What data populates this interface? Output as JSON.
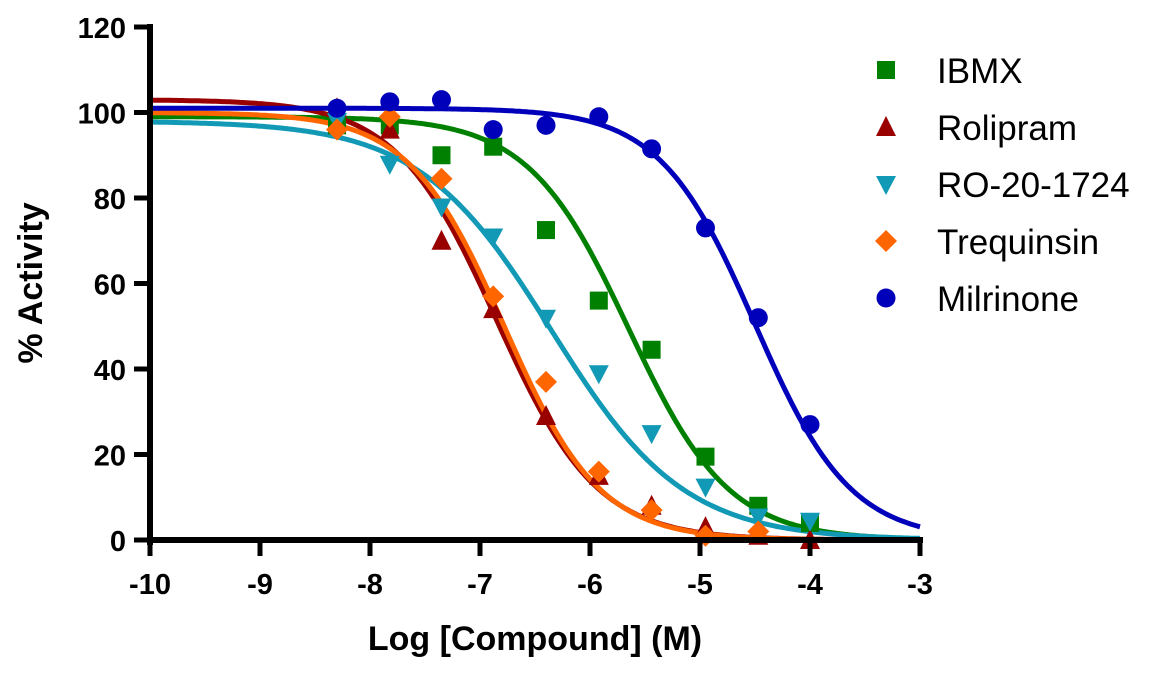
{
  "chart_data": {
    "type": "scatter",
    "title": "",
    "xlabel": "Log [Compound] (M)",
    "ylabel": "% Activity",
    "xlim": [
      -10,
      -3
    ],
    "ylim": [
      0,
      120
    ],
    "xticks": [
      "-10",
      "-9",
      "-8",
      "-7",
      "-6",
      "-5",
      "-4",
      "-3"
    ],
    "yticks": [
      "0",
      "20",
      "40",
      "60",
      "80",
      "100",
      "120"
    ],
    "grid": false,
    "legend_position": "right",
    "x": [
      -8.3,
      -7.82,
      -7.35,
      -6.88,
      -6.4,
      -5.92,
      -5.44,
      -4.95,
      -4.47,
      -4.0
    ],
    "series": [
      {
        "name": "IBMX",
        "marker": "square",
        "color": "#008000",
        "values": [
          97,
          97,
          90,
          92,
          72.5,
          56,
          44.5,
          19.5,
          8,
          4
        ],
        "fit": {
          "top": 99,
          "bottom": 0,
          "logIC50": -5.65,
          "hill": 0.95
        }
      },
      {
        "name": "Rolipram",
        "marker": "triangle-up",
        "color": "#990000",
        "values": [
          101,
          96,
          70,
          54,
          29,
          15,
          8,
          3,
          1,
          0
        ],
        "fit": {
          "top": 103,
          "bottom": 0,
          "logIC50": -6.85,
          "hill": 0.95
        }
      },
      {
        "name": "RO-20-1724",
        "marker": "triangle-down",
        "color": "#1199B5",
        "values": [
          98,
          88,
          78,
          71,
          52,
          39,
          25,
          12.5,
          5.5,
          4.5
        ],
        "fit": {
          "top": 98,
          "bottom": 0,
          "logIC50": -6.35,
          "hill": 0.72
        }
      },
      {
        "name": "Trequinsin",
        "marker": "diamond",
        "color": "#FF6600",
        "values": [
          96,
          99,
          84.5,
          57,
          37,
          16,
          7,
          1,
          2,
          null
        ],
        "fit": {
          "top": 100,
          "bottom": 0,
          "logIC50": -6.78,
          "hill": 1.0
        }
      },
      {
        "name": "Milrinone",
        "marker": "circle",
        "color": "#0000BB",
        "values": [
          101,
          102.5,
          103,
          96,
          97,
          99,
          91.5,
          73,
          52,
          27
        ],
        "fit": {
          "top": 101,
          "bottom": 0,
          "logIC50": -4.5,
          "hill": 1.0
        }
      }
    ]
  }
}
